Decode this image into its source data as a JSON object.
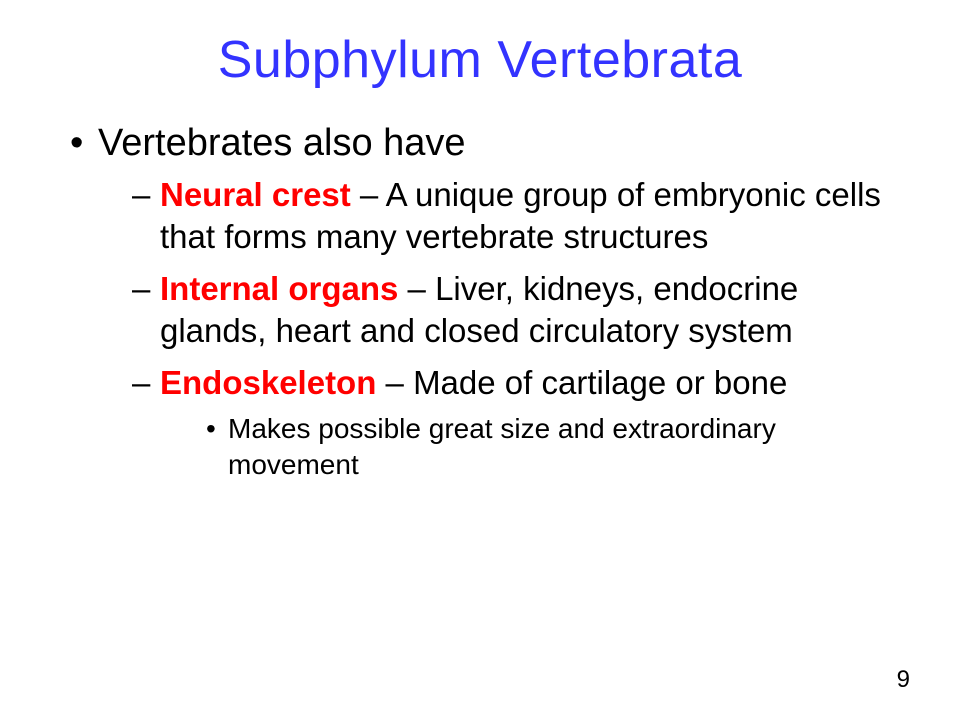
{
  "colors": {
    "title": "#3333ff",
    "highlight": "#ff0000",
    "body_text": "#000000",
    "background": "#ffffff"
  },
  "typography": {
    "title_fontsize": 52,
    "level1_fontsize": 38,
    "level2_fontsize": 33,
    "level3_fontsize": 28,
    "font_family": "Arial"
  },
  "title": "Subphylum Vertebrata",
  "level1_text": "Vertebrates also have",
  "items": [
    {
      "term": "Neural crest",
      "desc": " – A unique group of embryonic cells that forms many vertebrate structures"
    },
    {
      "term": "Internal organs",
      "desc": " – Liver, kidneys, endocrine glands, heart and closed circulatory system"
    },
    {
      "term": "Endoskeleton",
      "desc": " – Made of cartilage or bone",
      "sub": "Makes possible great size and extraordinary movement"
    }
  ],
  "page_number": "9"
}
